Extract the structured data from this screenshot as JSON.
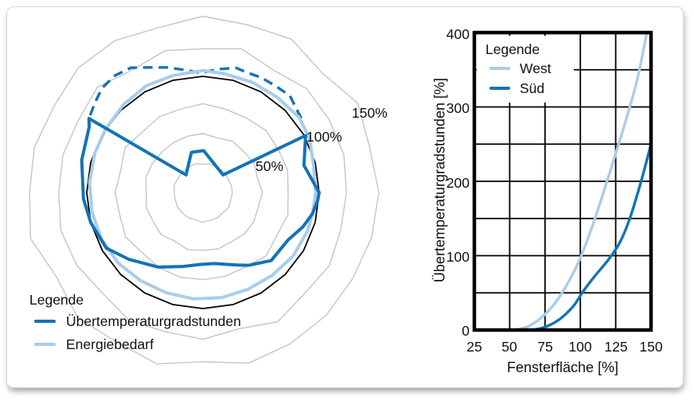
{
  "colors": {
    "dark_blue": "#1373b7",
    "light_blue": "#a9cde9",
    "grid_gray": "#c8c8c8",
    "line_black": "#000000",
    "card_border": "#d7d7d7"
  },
  "chart_data": [
    {
      "type": "radar",
      "angle_unit": "degrees_ccw_from_east",
      "radius_unit": "percent_of_reference",
      "radial_ticks": [
        "50%",
        "100%",
        "150%"
      ],
      "grid_rings_pct": [
        25,
        50,
        75,
        125,
        150
      ],
      "reference_ring_pct": 100,
      "grid": "polar_rings_light_gray",
      "legend": {
        "title": "Legende",
        "position": "bottom-left",
        "entries": [
          {
            "label": "Übertemperaturgradstunden",
            "color": "#1373b7",
            "style": "solid"
          },
          {
            "label": "Energiebedarf",
            "color": "#a9cde9",
            "style": "solid"
          }
        ]
      },
      "series": [
        {
          "name": "",
          "color": "#1373b7",
          "style": "dashed",
          "closed": false,
          "width": 3.4,
          "points_deg_pct": [
            [
              37,
              106
            ],
            [
              42,
              108
            ],
            [
              48,
              112
            ],
            [
              55,
              111
            ],
            [
              63,
              111
            ],
            [
              70,
              110
            ],
            [
              75,
              111
            ],
            [
              83,
              107
            ],
            [
              91,
              103
            ],
            [
              99,
              107
            ],
            [
              106,
              112
            ],
            [
              113,
              117
            ],
            [
              120,
              124
            ],
            [
              127,
              126
            ],
            [
              134,
              125
            ],
            [
              140,
              121
            ],
            [
              147,
              117
            ]
          ]
        },
        {
          "name": "Energiebedarf",
          "color": "#a9cde9",
          "style": "solid",
          "closed": true,
          "width": 4,
          "points_deg_pct": [
            [
              0,
              97
            ],
            [
              14,
              98
            ],
            [
              27,
              103
            ],
            [
              38,
              105
            ],
            [
              52,
              104
            ],
            [
              66,
              104
            ],
            [
              80,
              104
            ],
            [
              90,
              105
            ],
            [
              104,
              104
            ],
            [
              118,
              104
            ],
            [
              132,
              102
            ],
            [
              147,
              100
            ],
            [
              160,
              99
            ],
            [
              175,
              98
            ],
            [
              190,
              97
            ],
            [
              205,
              96
            ],
            [
              220,
              95
            ],
            [
              235,
              93
            ],
            [
              250,
              92
            ],
            [
              265,
              92
            ],
            [
              280,
              92
            ],
            [
              295,
              92
            ],
            [
              310,
              93
            ],
            [
              325,
              95
            ],
            [
              340,
              96
            ],
            [
              350,
              96
            ]
          ]
        },
        {
          "name": "Übertemperaturgradstunden",
          "color": "#1373b7",
          "style": "solid",
          "closed": true,
          "width": 4,
          "points_deg_pct": [
            [
              0,
              100
            ],
            [
              15,
              90
            ],
            [
              29,
              101
            ],
            [
              41,
              23
            ],
            [
              89,
              36
            ],
            [
              106,
              36
            ],
            [
              134,
              21
            ],
            [
              147,
              117
            ],
            [
              150,
              113
            ],
            [
              165,
              108
            ],
            [
              183,
              103
            ],
            [
              195,
              100
            ],
            [
              210,
              96
            ],
            [
              222,
              86
            ],
            [
              239,
              75
            ],
            [
              255,
              66
            ],
            [
              268,
              62
            ],
            [
              279,
              62
            ],
            [
              295,
              69
            ],
            [
              302,
              74
            ],
            [
              315,
              83
            ],
            [
              331,
              84
            ],
            [
              341,
              91
            ],
            [
              349,
              96
            ],
            [
              356,
              99
            ]
          ]
        }
      ]
    },
    {
      "type": "line",
      "xlabel": "Fensterfläche [%]",
      "ylabel": "Übertemperaturgradstunden [%]",
      "xlim": [
        25,
        150
      ],
      "ylim": [
        0,
        400
      ],
      "x_ticks": [
        25,
        50,
        75,
        100,
        125,
        150
      ],
      "y_ticks": [
        400,
        300,
        200,
        100,
        0
      ],
      "grid": {
        "x_step": 25,
        "y_step": 50,
        "color": "#000000",
        "frame": "thick_black"
      },
      "legend": {
        "title": "Legende",
        "position": "top-left",
        "entries": [
          {
            "label": "West",
            "color": "#a9cde9"
          },
          {
            "label": "Süd",
            "color": "#1373b7"
          }
        ]
      },
      "series": [
        {
          "name": "West",
          "color": "#a9cde9",
          "width": 3.4,
          "points": [
            [
              25,
              0
            ],
            [
              40,
              0
            ],
            [
              52,
              0
            ],
            [
              62,
              4
            ],
            [
              72,
              16
            ],
            [
              82,
              36
            ],
            [
              92,
              66
            ],
            [
              100,
              97
            ],
            [
              110,
              148
            ],
            [
              120,
              207
            ],
            [
              130,
              268
            ],
            [
              140,
              335
            ],
            [
              147,
              400
            ]
          ]
        },
        {
          "name": "Süd",
          "color": "#1373b7",
          "width": 3.4,
          "points": [
            [
              25,
              0
            ],
            [
              50,
              0
            ],
            [
              65,
              0
            ],
            [
              75,
              4
            ],
            [
              85,
              14
            ],
            [
              95,
              32
            ],
            [
              102,
              52
            ],
            [
              110,
              72
            ],
            [
              120,
              95
            ],
            [
              128,
              118
            ],
            [
              135,
              150
            ],
            [
              143,
              200
            ],
            [
              150,
              250
            ]
          ]
        }
      ]
    }
  ]
}
